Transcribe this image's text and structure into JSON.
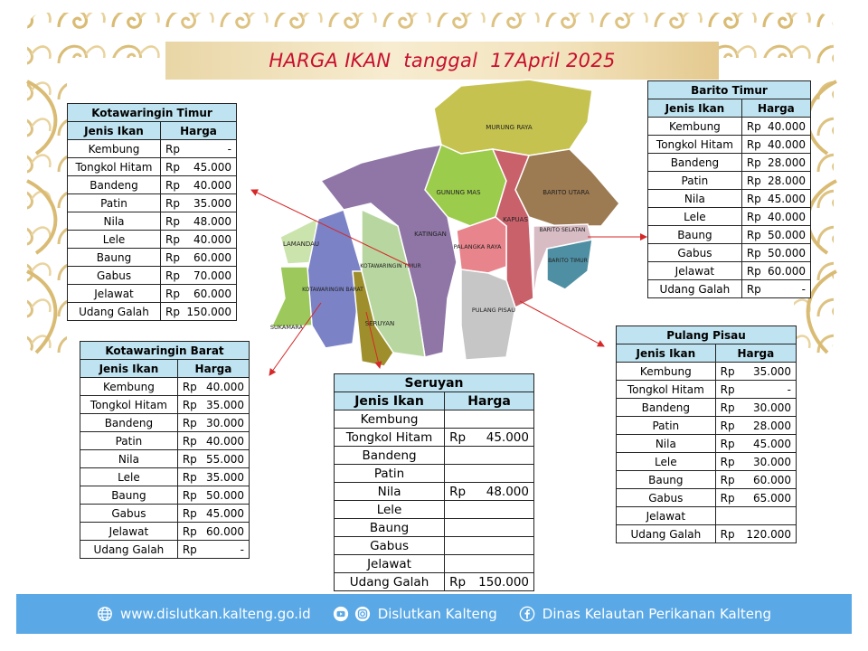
{
  "title": "HARGA IKAN  tanggal  17April 2025",
  "colors": {
    "title_red": "#c8102e",
    "table_header": "#bfe3f0",
    "footer_blue": "#5aa9e6",
    "ornament_gold": "#e3c889",
    "arrow_red": "#d62828"
  },
  "map_labels": {
    "murung_raya": "MURUNG RAYA",
    "gunung_mas": "GUNUNG MAS",
    "barito_utara": "BARITO UTARA",
    "kapuas": "KAPUAS",
    "barito_selatan": "BARITO SELATAN",
    "barito_timur": "BARITO TIMUR",
    "katingan": "KATINGAN",
    "palangka_raya": "PALANGKA RAYA",
    "lamandau": "LAMANDAU",
    "kotawaringin_timur": "KOTAWARINGIN TIMUR",
    "kotawaringin_barat": "KOTAWARINGIN BARAT",
    "seruyan": "SERUYAN",
    "sukamara": "SUKAMARA",
    "pulang_pisau": "PULANG PISAU"
  },
  "columns": {
    "fish": "Jenis Ikan",
    "price": "Harga",
    "currency": "Rp"
  },
  "tables": {
    "kotim": {
      "name": "Kotawaringin Timur",
      "rows": [
        {
          "fish": "Kembung",
          "price": "-"
        },
        {
          "fish": "Tongkol Hitam",
          "price": "45.000"
        },
        {
          "fish": "Bandeng",
          "price": "40.000"
        },
        {
          "fish": "Patin",
          "price": "35.000"
        },
        {
          "fish": "Nila",
          "price": "48.000"
        },
        {
          "fish": "Lele",
          "price": "40.000"
        },
        {
          "fish": "Baung",
          "price": "60.000"
        },
        {
          "fish": "Gabus",
          "price": "70.000"
        },
        {
          "fish": "Jelawat",
          "price": "60.000"
        },
        {
          "fish": "Udang Galah",
          "price": "150.000"
        }
      ]
    },
    "kobar": {
      "name": "Kotawaringin Barat",
      "rows": [
        {
          "fish": "Kembung",
          "price": "40.000"
        },
        {
          "fish": "Tongkol Hitam",
          "price": "35.000"
        },
        {
          "fish": "Bandeng",
          "price": "30.000"
        },
        {
          "fish": "Patin",
          "price": "40.000"
        },
        {
          "fish": "Nila",
          "price": "55.000"
        },
        {
          "fish": "Lele",
          "price": "35.000"
        },
        {
          "fish": "Baung",
          "price": "50.000"
        },
        {
          "fish": "Gabus",
          "price": "45.000"
        },
        {
          "fish": "Jelawat",
          "price": "60.000"
        },
        {
          "fish": "Udang Galah",
          "price": "-"
        }
      ]
    },
    "bartim": {
      "name": "Barito Timur",
      "rows": [
        {
          "fish": "Kembung",
          "price": "40.000"
        },
        {
          "fish": "Tongkol Hitam",
          "price": "40.000"
        },
        {
          "fish": "Bandeng",
          "price": "28.000"
        },
        {
          "fish": "Patin",
          "price": "28.000"
        },
        {
          "fish": "Nila",
          "price": "45.000"
        },
        {
          "fish": "Lele",
          "price": "40.000"
        },
        {
          "fish": "Baung",
          "price": "50.000"
        },
        {
          "fish": "Gabus",
          "price": "50.000"
        },
        {
          "fish": "Jelawat",
          "price": "60.000"
        },
        {
          "fish": "Udang Galah",
          "price": "-"
        }
      ]
    },
    "pulpis": {
      "name": "Pulang Pisau",
      "rows": [
        {
          "fish": "Kembung",
          "price": "35.000"
        },
        {
          "fish": "Tongkol Hitam",
          "price": "-"
        },
        {
          "fish": "Bandeng",
          "price": "30.000"
        },
        {
          "fish": "Patin",
          "price": "28.000"
        },
        {
          "fish": "Nila",
          "price": "45.000"
        },
        {
          "fish": "Lele",
          "price": "30.000"
        },
        {
          "fish": "Baung",
          "price": "60.000"
        },
        {
          "fish": "Gabus",
          "price": "65.000"
        },
        {
          "fish": "Jelawat",
          "price": null
        },
        {
          "fish": "Udang Galah",
          "price": "120.000"
        }
      ]
    },
    "seruyan": {
      "name": "Seruyan",
      "rows": [
        {
          "fish": "Kembung",
          "price": null
        },
        {
          "fish": "Tongkol Hitam",
          "price": "45.000"
        },
        {
          "fish": "Bandeng",
          "price": null
        },
        {
          "fish": "Patin",
          "price": null
        },
        {
          "fish": "Nila",
          "price": "48.000"
        },
        {
          "fish": "Lele",
          "price": null
        },
        {
          "fish": "Baung",
          "price": null
        },
        {
          "fish": "Gabus",
          "price": null
        },
        {
          "fish": "Jelawat",
          "price": null
        },
        {
          "fish": "Udang Galah",
          "price": "150.000"
        }
      ]
    }
  },
  "footer": {
    "website": "www.dislutkan.kalteng.go.id",
    "social": "Dislutkan Kalteng",
    "facebook": "Dinas Kelautan Perikanan Kalteng",
    "icons": [
      "globe-icon",
      "youtube-icon",
      "instagram-icon",
      "facebook-icon"
    ]
  }
}
